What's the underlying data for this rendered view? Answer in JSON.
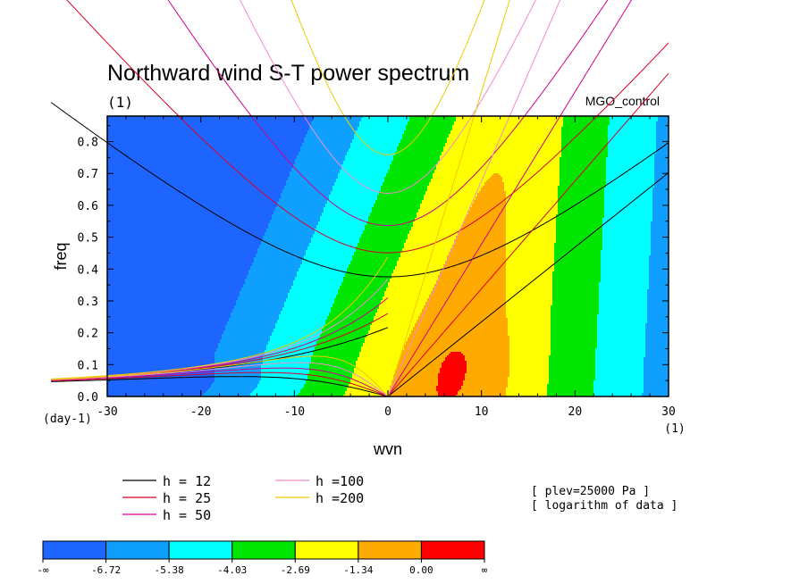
{
  "chart_data": {
    "type": "heatmap",
    "title": "Northward wind S-T power spectrum",
    "units_label": "(1)",
    "run_label": "MGO_control",
    "xlabel": "wvn",
    "ylabel": "freq",
    "x_unit_label": "(1)",
    "y_unit_label": "(day-1)",
    "xlim": [
      -30,
      30
    ],
    "ylim": [
      0,
      0.88
    ],
    "x_ticks": [
      -30,
      -20,
      -10,
      0,
      10,
      20,
      30
    ],
    "x_tick_labels": [
      "-30",
      "-20",
      "-10",
      "0",
      "10",
      "20",
      "30"
    ],
    "y_ticks": [
      0.0,
      0.1,
      0.2,
      0.3,
      0.4,
      0.5,
      0.6,
      0.7,
      0.8
    ],
    "y_tick_labels": [
      "0.0",
      "0.1",
      "0.2",
      "0.3",
      "0.4",
      "0.5",
      "0.6",
      "0.7",
      "0.8"
    ],
    "contour_levels": [
      -6.72,
      -5.38,
      -4.03,
      -2.69,
      -1.34,
      0.0
    ],
    "colorbar_labels": [
      "-∞",
      "-6.72",
      "-5.38",
      "-4.03",
      "-2.69",
      "-1.34",
      "0.00",
      "∞"
    ],
    "colorbar_colors": [
      "#1e64ff",
      "#0fa0ff",
      "#00ffff",
      "#00e600",
      "#ffff00",
      "#ffaa00",
      "#ff0000"
    ],
    "notes": [
      "[ plev=25000 Pa ]",
      "[ logarithm of data ]"
    ],
    "dispersion_curves": [
      {
        "label": "h = 12",
        "color": "#000000"
      },
      {
        "label": "h = 25",
        "color": "#d8002a"
      },
      {
        "label": "h = 50",
        "color": "#d0008c"
      },
      {
        "label": "h =100",
        "color": "#f08cd2"
      },
      {
        "label": "h =200",
        "color": "#f0c800"
      }
    ]
  }
}
